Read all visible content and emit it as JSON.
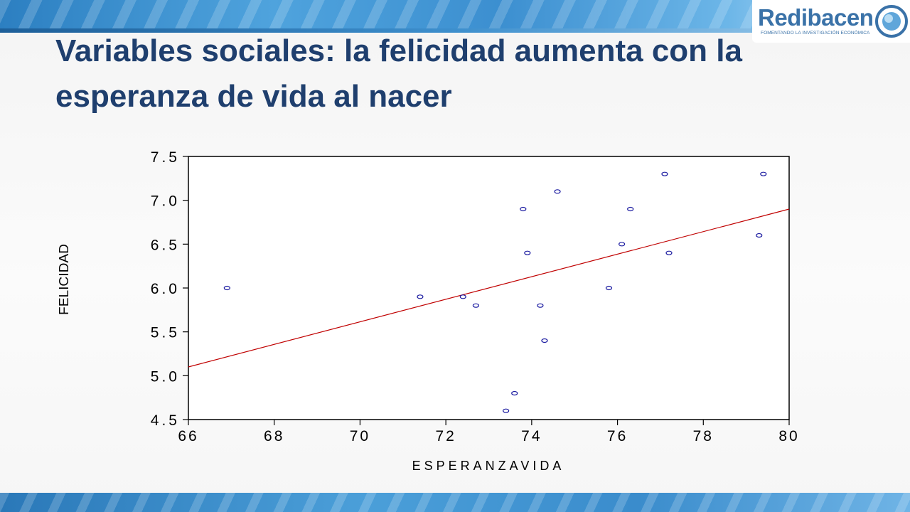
{
  "slide": {
    "title": "Variables sociales: la felicidad aumenta con la esperanza de vida al nacer"
  },
  "logo": {
    "name": "Redibacen",
    "tagline": "FOMENTANDO LA INVESTIGACIÓN ECONÓMICA",
    "color": "#3a72a8"
  },
  "colors": {
    "title": "#1f3f6e",
    "points": "#1a1aa0",
    "fit_line": "#c00000",
    "banner": "#3c8fd0"
  },
  "chart_data": {
    "type": "scatter",
    "title": "",
    "xlabel": "ESPERANZAVIDA",
    "ylabel": "FELICIDAD",
    "xlim": [
      66,
      80
    ],
    "ylim": [
      4.5,
      7.5
    ],
    "x_ticks": [
      "66",
      "68",
      "70",
      "72",
      "74",
      "76",
      "78",
      "80"
    ],
    "y_ticks": [
      "4.5",
      "5.0",
      "5.5",
      "6.0",
      "6.5",
      "7.0",
      "7.5"
    ],
    "grid": false,
    "series": [
      {
        "points": [
          {
            "x": 66.9,
            "y": 6.0
          },
          {
            "x": 71.4,
            "y": 5.9
          },
          {
            "x": 72.4,
            "y": 5.9
          },
          {
            "x": 72.7,
            "y": 5.8
          },
          {
            "x": 73.4,
            "y": 4.6
          },
          {
            "x": 73.6,
            "y": 4.8
          },
          {
            "x": 73.8,
            "y": 6.9
          },
          {
            "x": 73.9,
            "y": 6.4
          },
          {
            "x": 74.2,
            "y": 5.8
          },
          {
            "x": 74.3,
            "y": 5.4
          },
          {
            "x": 74.6,
            "y": 7.1
          },
          {
            "x": 75.8,
            "y": 6.0
          },
          {
            "x": 76.1,
            "y": 6.5
          },
          {
            "x": 76.3,
            "y": 6.9
          },
          {
            "x": 77.1,
            "y": 7.3
          },
          {
            "x": 77.2,
            "y": 6.4
          },
          {
            "x": 79.3,
            "y": 6.6
          },
          {
            "x": 79.4,
            "y": 7.3
          }
        ]
      }
    ],
    "fit_line": {
      "x": [
        66,
        80
      ],
      "y": [
        5.1,
        6.9
      ]
    }
  }
}
